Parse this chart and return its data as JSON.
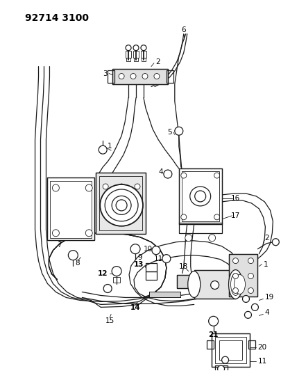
{
  "title": "92714 3100",
  "bg_color": "#ffffff",
  "line_color": "#1a1a1a",
  "label_color": "#000000",
  "title_fontsize": 10,
  "label_fontsize": 7.5,
  "fig_width": 4.06,
  "fig_height": 5.33,
  "dpi": 100
}
